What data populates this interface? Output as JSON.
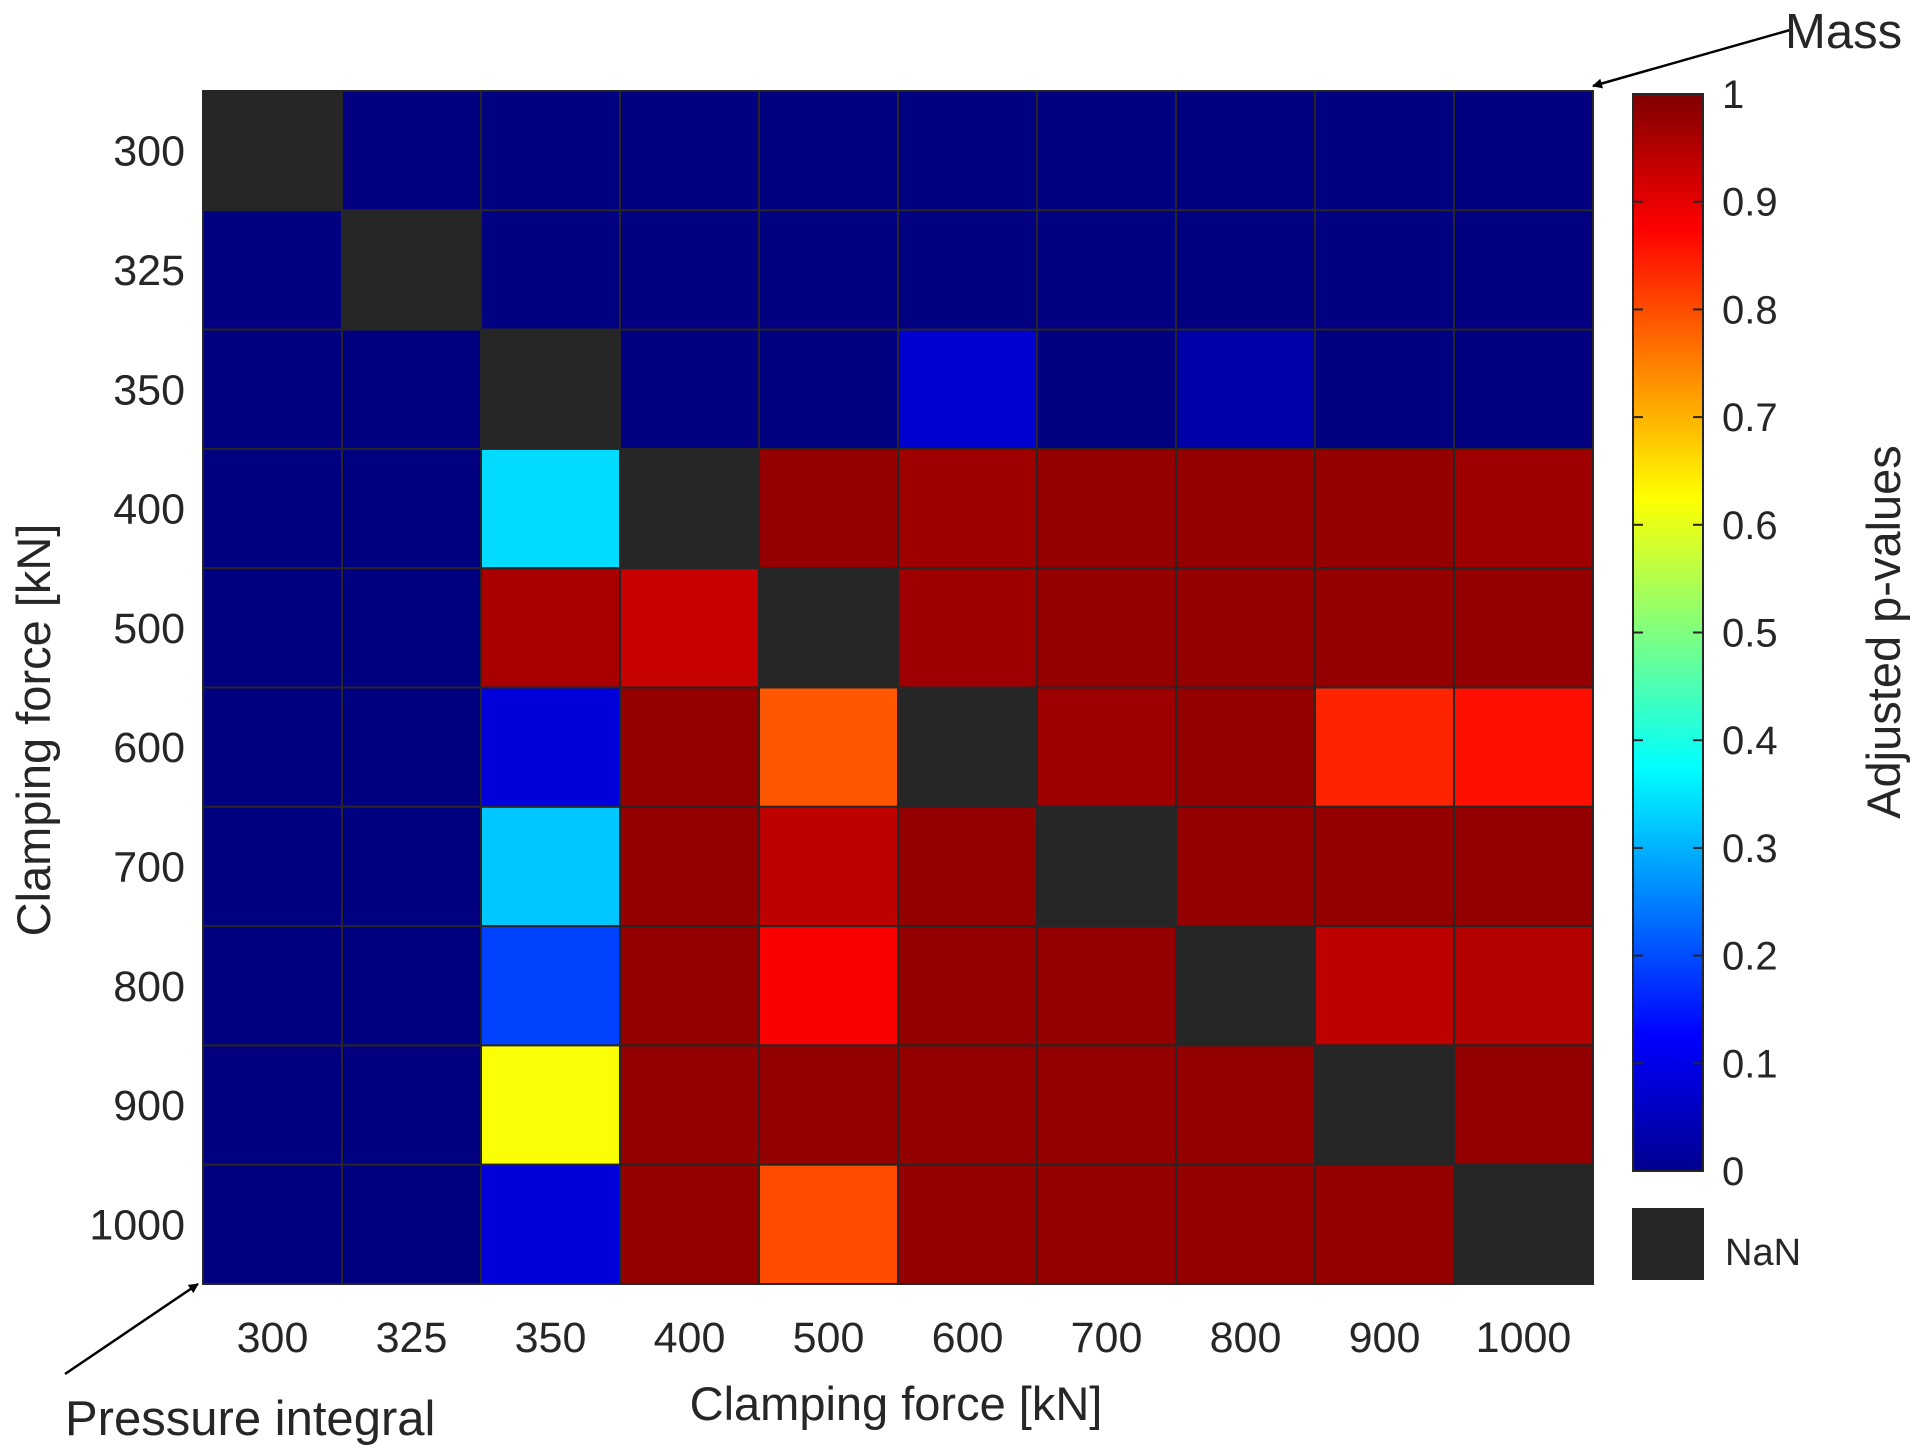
{
  "chart_data": {
    "type": "heatmap",
    "x_categories": [
      "300",
      "325",
      "350",
      "400",
      "500",
      "600",
      "700",
      "800",
      "900",
      "1000"
    ],
    "y_categories": [
      "300",
      "325",
      "350",
      "400",
      "500",
      "600",
      "700",
      "800",
      "900",
      "1000"
    ],
    "xlabel": "Clamping force [kN]",
    "ylabel": "Clamping force [kN]",
    "values": [
      [
        null,
        0.0,
        0.0,
        0.0,
        0.0,
        0.0,
        0.0,
        0.0,
        0.0,
        0.0
      ],
      [
        0.0,
        null,
        0.0,
        0.0,
        0.0,
        0.0,
        0.0,
        0.0,
        0.0,
        0.0
      ],
      [
        0.0,
        0.0,
        null,
        0.0,
        0.0,
        0.08,
        0.0,
        0.04,
        0.0,
        0.0
      ],
      [
        0.0,
        0.0,
        0.34,
        null,
        0.98,
        0.97,
        0.98,
        0.98,
        0.98,
        0.97
      ],
      [
        0.0,
        0.0,
        0.96,
        0.93,
        null,
        0.97,
        0.98,
        0.98,
        0.98,
        0.98
      ],
      [
        0.0,
        0.0,
        0.09,
        0.98,
        0.79,
        null,
        0.97,
        0.98,
        0.84,
        0.86
      ],
      [
        0.0,
        0.0,
        0.32,
        0.98,
        0.94,
        0.98,
        null,
        0.98,
        0.98,
        0.98
      ],
      [
        0.0,
        0.0,
        0.19,
        0.98,
        0.88,
        0.98,
        0.98,
        null,
        0.94,
        0.95
      ],
      [
        0.0,
        0.0,
        0.62,
        0.98,
        0.98,
        0.98,
        0.98,
        0.98,
        null,
        0.98
      ],
      [
        0.0,
        0.0,
        0.09,
        0.98,
        0.8,
        0.98,
        0.98,
        0.98,
        0.98,
        null
      ]
    ],
    "colorbar": {
      "label": "Adjusted p-values",
      "range": [
        0,
        1
      ],
      "ticks": [
        "0",
        "0.1",
        "0.2",
        "0.3",
        "0.4",
        "0.5",
        "0.6",
        "0.7",
        "0.8",
        "0.9",
        "1"
      ],
      "colormap": "jet",
      "nan_label": "NaN",
      "nan_color": "#262626"
    },
    "annotations": {
      "upper_triangle": "Mass",
      "lower_triangle": "Pressure integral"
    },
    "grid": true
  }
}
